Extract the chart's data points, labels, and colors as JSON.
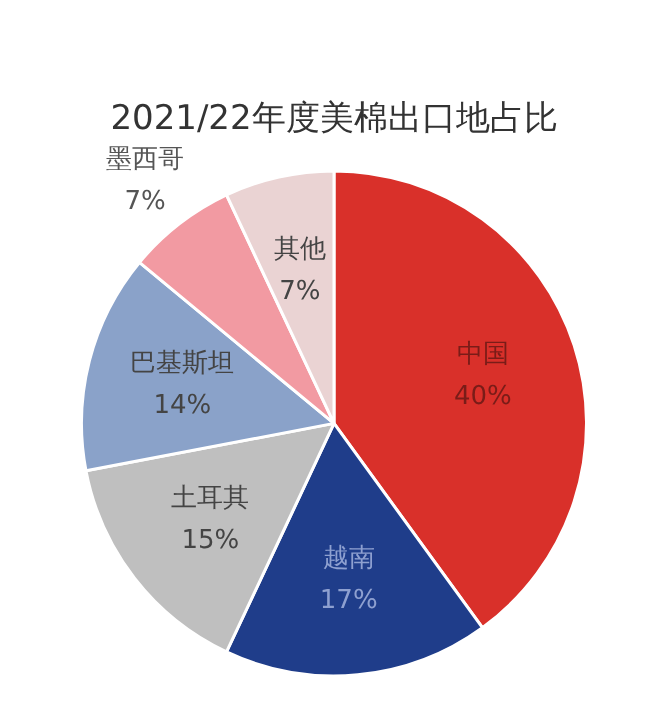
{
  "chart_data": {
    "type": "pie",
    "title": "2021/22年度美棉出口地占比",
    "categories": [
      "中国",
      "越南",
      "土耳其",
      "巴基斯坦",
      "墨西哥",
      "其他"
    ],
    "values": [
      40,
      17,
      15,
      14,
      7,
      7
    ],
    "colors": [
      "#d9302a",
      "#1f3d8a",
      "#bfbfbf",
      "#8aa2c9",
      "#f29aa2",
      "#ead3d3"
    ],
    "value_labels": [
      "40%",
      "17%",
      "15%",
      "14%",
      "7%",
      "7%"
    ],
    "legend": false
  }
}
